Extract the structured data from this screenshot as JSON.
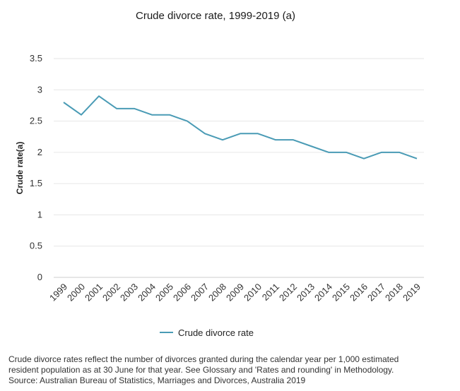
{
  "chart_data": {
    "type": "line",
    "title": "Crude divorce rate, 1999-2019 (a)",
    "xlabel": "",
    "ylabel": "Crude rate(a)",
    "categories": [
      "1999",
      "2000",
      "2001",
      "2002",
      "2003",
      "2004",
      "2005",
      "2006",
      "2007",
      "2008",
      "2009",
      "2010",
      "2011",
      "2012",
      "2013",
      "2014",
      "2015",
      "2016",
      "2017",
      "2018",
      "2019"
    ],
    "series": [
      {
        "name": "Crude divorce rate",
        "values": [
          2.8,
          2.6,
          2.9,
          2.7,
          2.7,
          2.6,
          2.6,
          2.5,
          2.3,
          2.2,
          2.3,
          2.3,
          2.2,
          2.2,
          2.1,
          2.0,
          2.0,
          1.9,
          2.0,
          2.0,
          1.9
        ]
      }
    ],
    "ylim": [
      0,
      3.5
    ],
    "yticks": [
      "0",
      "0.5",
      "1",
      "1.5",
      "2",
      "2.5",
      "3",
      "3.5"
    ],
    "grid": true,
    "legend": "bottom-center",
    "colors": {
      "line": "#4a9bb5",
      "grid": "#e6e6e6",
      "axis": "#cccccc"
    }
  },
  "footnote": {
    "line1": "Crude divorce rates reflect the number of divorces granted during the calendar year per 1,000 estimated",
    "line2": "resident population as at 30 June for that year. See Glossary and 'Rates and rounding' in Methodology.",
    "line3": "Source: Australian Bureau of Statistics, Marriages and Divorces, Australia 2019"
  }
}
